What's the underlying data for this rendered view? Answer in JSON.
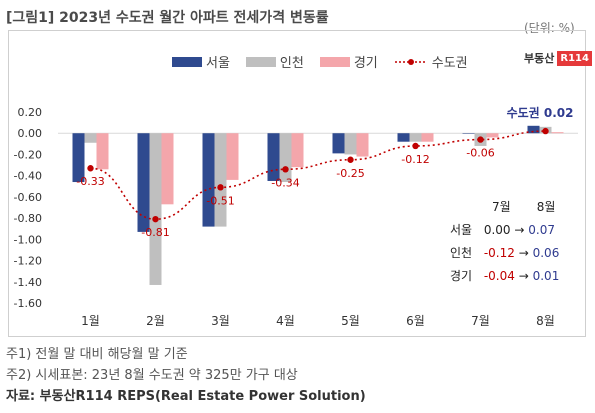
{
  "title": "[그림1] 2023년 수도권 월간 아파트 전세가격 변동률",
  "unit": "(단위: %)",
  "logo": {
    "text": "부동산",
    "mark": "R114"
  },
  "colors": {
    "seoul": "#2f4a8f",
    "incheon": "#bfbfbf",
    "gyeonggi": "#f4a6ab",
    "metro": "#c00000"
  },
  "chart_data": {
    "type": "bar",
    "categories": [
      "1월",
      "2월",
      "3월",
      "4월",
      "5월",
      "6월",
      "7월",
      "8월"
    ],
    "series": [
      {
        "name": "서울",
        "type": "bar",
        "values": [
          -0.46,
          -0.93,
          -0.88,
          -0.45,
          -0.19,
          -0.08,
          0.0,
          0.07
        ]
      },
      {
        "name": "인천",
        "type": "bar",
        "values": [
          -0.09,
          -1.43,
          -0.88,
          -0.46,
          -0.2,
          -0.08,
          -0.12,
          0.06
        ]
      },
      {
        "name": "경기",
        "type": "bar",
        "values": [
          -0.34,
          -0.67,
          -0.44,
          -0.32,
          -0.22,
          -0.08,
          -0.04,
          0.01
        ]
      },
      {
        "name": "수도권",
        "type": "line",
        "values": [
          -0.33,
          -0.81,
          -0.51,
          -0.34,
          -0.25,
          -0.12,
          -0.06,
          0.02
        ]
      }
    ],
    "data_labels": [
      "-0.33",
      "-0.81",
      "-0.51",
      "-0.34",
      "-0.25",
      "-0.12",
      "-0.06",
      "0.02"
    ],
    "last_label_prefix": "수도권",
    "y_ticks": [
      "0.20",
      "0.00",
      "-0.20",
      "-0.40",
      "-0.60",
      "-0.80",
      "-1.00",
      "-1.20",
      "-1.40",
      "-1.60"
    ],
    "ylim": [
      -1.6,
      0.2
    ],
    "legend_position": "top"
  },
  "side_table": {
    "headers": [
      "7월",
      "8월"
    ],
    "rows": [
      {
        "label": "서울",
        "from": "0.00",
        "arrow": "→",
        "to": "0.07"
      },
      {
        "label": "인천",
        "from": "-0.12",
        "arrow": "→",
        "to": "0.06"
      },
      {
        "label": "경기",
        "from": "-0.04",
        "arrow": "→",
        "to": "0.01"
      }
    ]
  },
  "notes": [
    "주1) 전월 말 대비 해당월 말 기준",
    "주2) 시세표본: 23년 8월 수도권 약 325만 가구 대상"
  ],
  "source": "자료: 부동산R114 REPS(Real Estate Power Solution)"
}
